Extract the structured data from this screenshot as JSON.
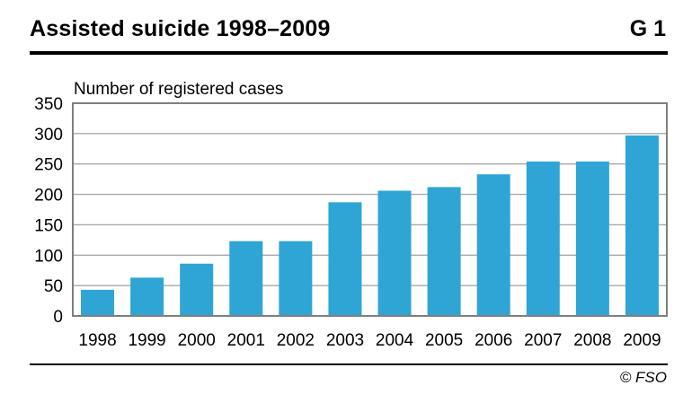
{
  "header": {
    "title": "Assisted suicide 1998–2009",
    "figure_number": "G 1"
  },
  "footer": {
    "source": "© FSO"
  },
  "colors": {
    "bar": "#2fa5d5",
    "grid": "#a9a9a9",
    "axis": "#7f7f7f",
    "rule": "#000000"
  },
  "chart_data": {
    "type": "bar",
    "title": "Assisted suicide 1998–2009",
    "xlabel": "",
    "ylabel": "Number of registered cases",
    "categories": [
      "1998",
      "1999",
      "2000",
      "2001",
      "2002",
      "2003",
      "2004",
      "2005",
      "2006",
      "2007",
      "2008",
      "2009"
    ],
    "series": [
      {
        "values": [
          43,
          63,
          86,
          123,
          123,
          187,
          206,
          212,
          233,
          254,
          254,
          297
        ]
      }
    ],
    "ylim": [
      0,
      350
    ],
    "yticks": [
      0,
      50,
      100,
      150,
      200,
      250,
      300,
      350
    ],
    "grid": true,
    "legend": "none"
  }
}
